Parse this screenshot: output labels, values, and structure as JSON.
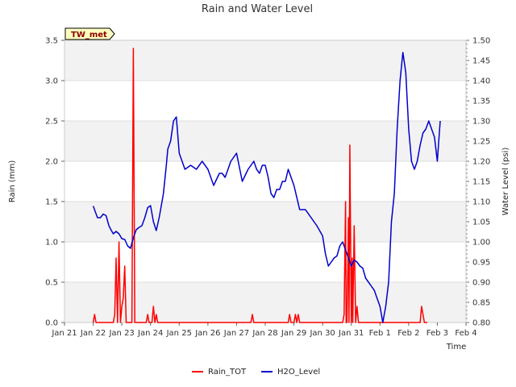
{
  "chart_data": {
    "type": "line",
    "title": "Rain and Water Level",
    "badge": "TW_met",
    "xlabel": "Time",
    "ylabel_left": "Rain (mm)",
    "ylabel_right": "Water Level (psi)",
    "x_domain": [
      0,
      14
    ],
    "ylim_left": [
      0,
      3.5
    ],
    "ylim_right": [
      0.8,
      1.5
    ],
    "x_ticks": [
      {
        "pos": 0,
        "label": "Jan 21"
      },
      {
        "pos": 1,
        "label": "Jan 22"
      },
      {
        "pos": 2,
        "label": "Jan 23"
      },
      {
        "pos": 3,
        "label": "Jan 24"
      },
      {
        "pos": 4,
        "label": "Jan 25"
      },
      {
        "pos": 5,
        "label": "Jan 26"
      },
      {
        "pos": 6,
        "label": "Jan 27"
      },
      {
        "pos": 7,
        "label": "Jan 28"
      },
      {
        "pos": 8,
        "label": "Jan 29"
      },
      {
        "pos": 9,
        "label": "Jan 30"
      },
      {
        "pos": 10,
        "label": "Jan 31"
      },
      {
        "pos": 11,
        "label": "Feb 1"
      },
      {
        "pos": 12,
        "label": "Feb 2"
      },
      {
        "pos": 13,
        "label": "Feb 3"
      },
      {
        "pos": 14,
        "label": "Feb 4"
      }
    ],
    "y_ticks_left": [
      "0.0",
      "0.5",
      "1.0",
      "1.5",
      "2.0",
      "2.5",
      "3.0",
      "3.5"
    ],
    "y_ticks_right": [
      "0.80",
      "0.85",
      "0.90",
      "0.95",
      "1.00",
      "1.05",
      "1.10",
      "1.15",
      "1.20",
      "1.25",
      "1.30",
      "1.35",
      "1.40",
      "1.45",
      "1.50"
    ],
    "series": [
      {
        "name": "Rain_TOT",
        "color": "#ff0000",
        "axis": "left",
        "x": [
          1.0,
          1.05,
          1.1,
          1.7,
          1.75,
          1.8,
          1.85,
          1.9,
          1.95,
          2.0,
          2.05,
          2.1,
          2.15,
          2.2,
          2.25,
          2.3,
          2.35,
          2.4,
          2.45,
          2.5,
          2.55,
          2.6,
          2.62,
          2.67,
          2.72,
          2.75,
          2.8,
          2.85,
          2.9,
          2.95,
          3.0,
          3.05,
          3.1,
          3.15,
          3.2,
          3.25,
          3.3,
          3.35,
          3.4,
          3.45,
          3.5,
          3.55,
          3.6,
          3.65,
          3.7,
          6.5,
          6.55,
          6.6,
          7.8,
          7.85,
          7.9,
          8.0,
          8.05,
          8.1,
          8.15,
          8.2,
          9.7,
          9.75,
          9.8,
          9.82,
          9.85,
          9.9,
          9.92,
          9.95,
          10.0,
          10.03,
          10.05,
          10.1,
          10.15,
          10.2,
          10.25,
          10.3,
          10.35,
          10.4,
          10.45,
          10.5,
          10.55,
          10.6,
          10.65,
          10.7,
          10.75,
          10.8,
          10.85,
          10.9,
          12.4,
          12.45,
          12.5,
          12.55,
          12.6,
          12.65
        ],
        "y": [
          0,
          0.1,
          0,
          0,
          0.1,
          0.8,
          0,
          1.0,
          0,
          0.2,
          0.3,
          0.7,
          0,
          0,
          0,
          0,
          0,
          3.4,
          0,
          0,
          0,
          0,
          0,
          0,
          0,
          0,
          0,
          0,
          0.1,
          0,
          0,
          0,
          0.2,
          0,
          0.1,
          0,
          0,
          0,
          0,
          0,
          0,
          0,
          0,
          0,
          0,
          0,
          0.1,
          0,
          0,
          0.1,
          0,
          0,
          0.1,
          0,
          0.1,
          0,
          0,
          0.1,
          1.5,
          0,
          0,
          1.3,
          0,
          2.2,
          0,
          0.8,
          0,
          1.2,
          0,
          0.2,
          0,
          0,
          0,
          0,
          0,
          0,
          0,
          0,
          0,
          0,
          0,
          0,
          0,
          0,
          0,
          0.2,
          0.1,
          0,
          0,
          0
        ]
      },
      {
        "name": "H2O_Level",
        "color": "#0000cc",
        "axis": "right",
        "x": [
          1.0,
          1.15,
          1.25,
          1.35,
          1.45,
          1.55,
          1.62,
          1.7,
          1.8,
          1.9,
          2.0,
          2.1,
          2.2,
          2.3,
          2.4,
          2.5,
          2.6,
          2.7,
          2.8,
          2.9,
          3.0,
          3.1,
          3.2,
          3.3,
          3.35,
          3.45,
          3.55,
          3.6,
          3.7,
          3.8,
          3.9,
          4.0,
          4.2,
          4.4,
          4.6,
          4.7,
          4.8,
          4.9,
          5.0,
          5.2,
          5.4,
          5.5,
          5.6,
          5.7,
          5.8,
          6.0,
          6.2,
          6.4,
          6.6,
          6.7,
          6.8,
          6.9,
          7.0,
          7.1,
          7.2,
          7.3,
          7.4,
          7.5,
          7.6,
          7.7,
          7.8,
          8.0,
          8.2,
          8.4,
          8.6,
          8.8,
          9.0,
          9.1,
          9.2,
          9.3,
          9.4,
          9.5,
          9.6,
          9.7,
          9.8,
          9.9,
          10.0,
          10.1,
          10.2,
          10.3,
          10.4,
          10.5,
          10.6,
          10.7,
          10.8,
          10.9,
          11.0,
          11.1,
          11.2,
          11.3,
          11.4,
          11.5,
          11.6,
          11.7,
          11.8,
          11.9,
          12.0,
          12.1,
          12.2,
          12.3,
          12.4,
          12.5,
          12.6,
          12.7,
          12.8,
          12.9,
          13.0,
          13.1
        ],
        "y": [
          1.089,
          1.06,
          1.06,
          1.069,
          1.065,
          1.04,
          1.03,
          1.02,
          1.026,
          1.02,
          1.008,
          1.006,
          0.99,
          0.984,
          1.01,
          1.03,
          1.036,
          1.04,
          1.06,
          1.085,
          1.09,
          1.05,
          1.028,
          1.06,
          1.08,
          1.12,
          1.19,
          1.23,
          1.25,
          1.3,
          1.31,
          1.22,
          1.18,
          1.19,
          1.18,
          1.19,
          1.2,
          1.19,
          1.18,
          1.14,
          1.17,
          1.17,
          1.16,
          1.18,
          1.2,
          1.22,
          1.15,
          1.18,
          1.2,
          1.18,
          1.17,
          1.19,
          1.19,
          1.16,
          1.12,
          1.11,
          1.13,
          1.13,
          1.15,
          1.15,
          1.18,
          1.14,
          1.08,
          1.08,
          1.06,
          1.04,
          1.015,
          0.97,
          0.94,
          0.95,
          0.96,
          0.965,
          0.99,
          1.0,
          0.98,
          0.96,
          0.94,
          0.955,
          0.95,
          0.94,
          0.935,
          0.91,
          0.9,
          0.89,
          0.88,
          0.86,
          0.84,
          0.8,
          0.84,
          0.9,
          1.05,
          1.12,
          1.28,
          1.4,
          1.47,
          1.42,
          1.28,
          1.2,
          1.18,
          1.2,
          1.24,
          1.27,
          1.28,
          1.3,
          1.28,
          1.26,
          1.2,
          1.3
        ]
      }
    ]
  }
}
